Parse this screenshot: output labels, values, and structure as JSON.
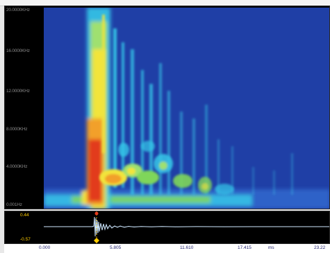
{
  "spectrogram": {
    "frequency_labels": [
      "20.0000KHz",
      "16.0000KHz",
      "12.0000KHz",
      "8.0000KHz",
      "4.0000KHz",
      "0.001Hz"
    ]
  },
  "waveform": {
    "max_label": "0.44",
    "min_label": "-0.57"
  },
  "time_axis": {
    "labels": [
      "0.000",
      "5.805",
      "11.610",
      "17.415",
      "ms",
      "23.22"
    ]
  },
  "colors": {
    "background_blue": "#1f3fa6",
    "cyan": "#35c7e8",
    "green": "#7fd65a",
    "yellow": "#f2e43a",
    "red": "#e23a1c",
    "waveform": "#cfe8ff",
    "cursor": "#ffcc00"
  }
}
